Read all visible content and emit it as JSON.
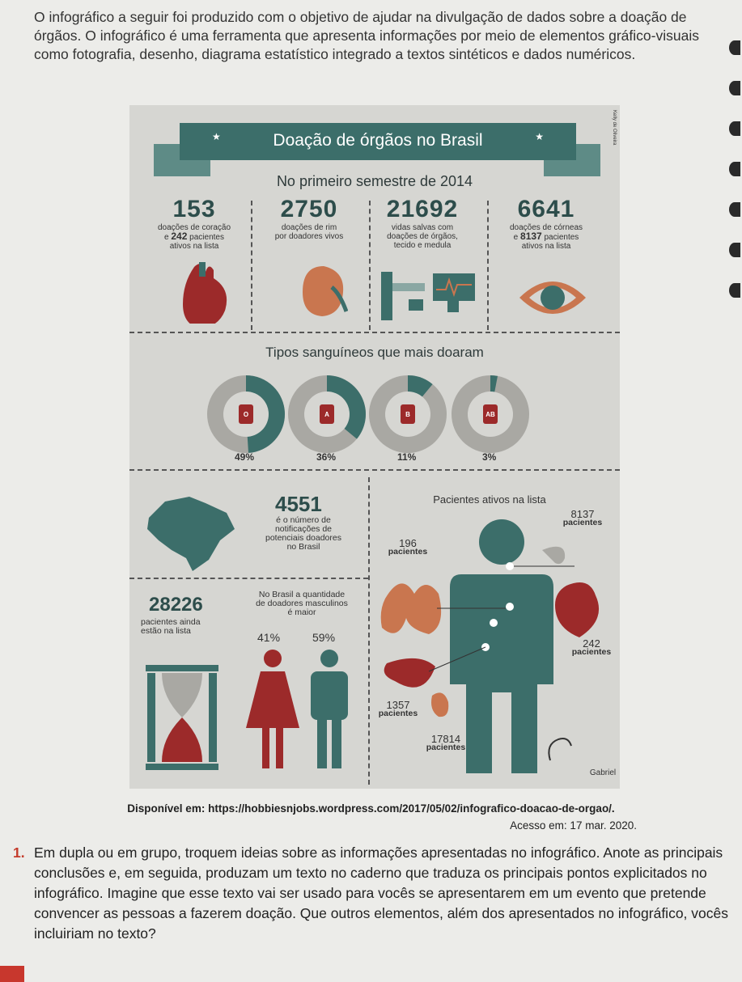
{
  "intro": "O infográfico a seguir foi produzido com o objetivo de ajudar na divulgação de dados sobre a doação de órgãos. O infográfico é uma ferramenta que apresenta informações por meio de elementos gráfico-visuais como fotografia, desenho, diagrama estatístico integrado a textos sintéticos e dados numéricos.",
  "infographic": {
    "title": "Doação de órgãos no Brasil",
    "subtitle": "No primeiro semestre de 2014",
    "stats": [
      {
        "num": "153",
        "label": "doações de coração",
        "sub_num": "242",
        "sub_label": "pacientes",
        "sub_label2": "ativos na lista",
        "sub_prefix": "e"
      },
      {
        "num": "2750",
        "label": "doações de rim",
        "label2": "por doadores vivos"
      },
      {
        "num": "21692",
        "label": "vidas salvas com",
        "label2": "doações de órgãos,",
        "label3": "tecido e medula"
      },
      {
        "num": "6641",
        "label": "doações de córneas",
        "sub_num": "8137",
        "sub_label": "pacientes",
        "sub_label2": "ativos na lista",
        "sub_prefix": "e"
      }
    ],
    "blood_title": "Tipos sanguíneos que mais doaram",
    "blood_types": [
      {
        "type": "O",
        "pct": "49%",
        "value": 49
      },
      {
        "type": "A",
        "pct": "36%",
        "value": 36
      },
      {
        "type": "B",
        "pct": "11%",
        "value": 11
      },
      {
        "type": "AB",
        "pct": "3%",
        "value": 3
      }
    ],
    "notif_num": "4551",
    "notif_text": [
      "é o número de",
      "notificações de",
      "potenciais doadores",
      "no Brasil"
    ],
    "waiting_num": "28226",
    "waiting_text": [
      "pacientes ainda",
      "estão na lista"
    ],
    "donor_text": [
      "No Brasil a quantidade",
      "de doadores masculinos",
      "é maior"
    ],
    "female_pct": "41%",
    "male_pct": "59%",
    "patients_title": "Pacientes ativos na lista",
    "patients": [
      {
        "num": "8137",
        "label": "pacientes"
      },
      {
        "num": "196",
        "label": "pacientes"
      },
      {
        "num": "242",
        "label": "pacientes"
      },
      {
        "num": "1357",
        "label": "pacientes"
      },
      {
        "num": "17814",
        "label": "pacientes"
      }
    ],
    "signature": "Gabriel",
    "credit": "Kelly de Oliveira",
    "colors": {
      "teal": "#3c6e6a",
      "light_teal": "#5e8b86",
      "red": "#9c2a2a",
      "grey": "#a9a8a3",
      "bg": "#d6d6d2"
    }
  },
  "source_label": "Disponível em:",
  "source_url": "https://hobbiesnjobs.wordpress.com/2017/05/02/infografico-doacao-de-orgao/.",
  "access": "Acesso em: 17 mar. 2020.",
  "question_number": "1.",
  "question": "Em dupla ou em grupo, troquem ideias sobre as informações apresentadas no infográfico. Anote as principais conclusões e, em seguida, produzam um texto no caderno que traduza os principais pontos explicitados no infográfico. Imagine que esse texto vai ser usado para vocês se apresentarem em um evento que pretende convencer as pessoas a fazerem doação. Que outros elementos, além dos apresentados no infográfico, vocês incluiriam no texto?"
}
